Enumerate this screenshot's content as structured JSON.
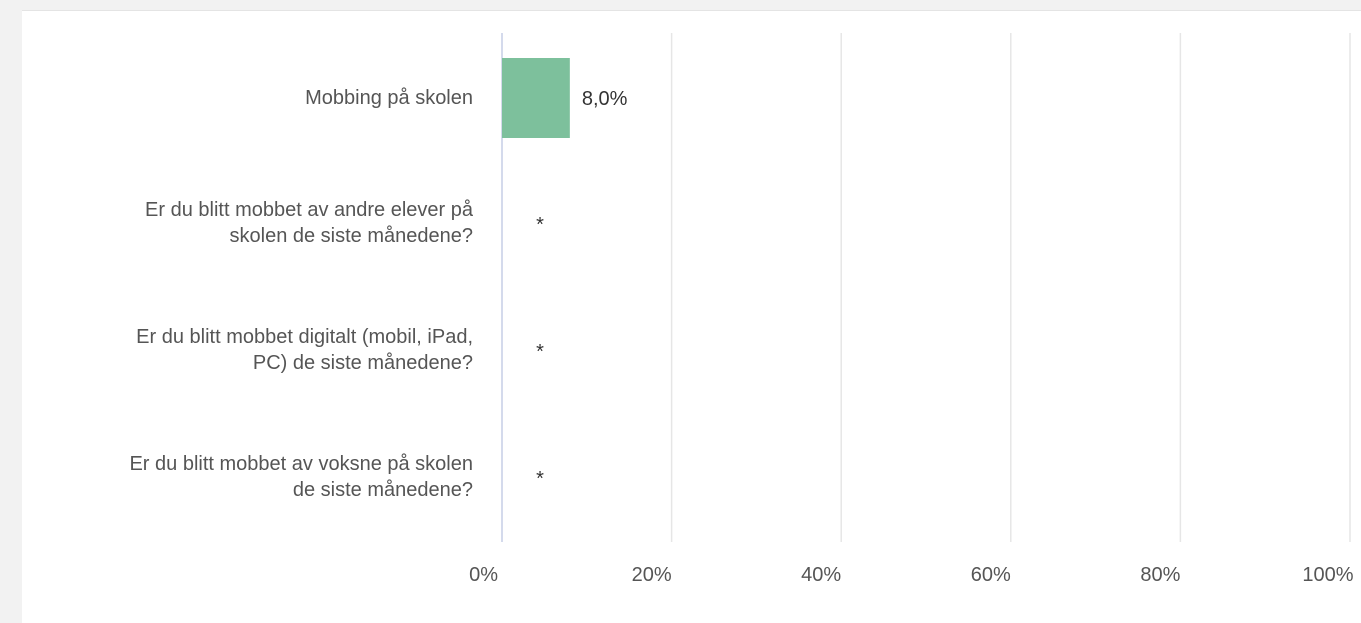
{
  "chart_data": {
    "type": "bar",
    "orientation": "horizontal",
    "categories": [
      "Mobbing på skolen",
      "Er du blitt mobbet av andre elever på skolen de siste månedene?",
      "Er du blitt mobbet digitalt (mobil, iPad, PC) de siste månedene?",
      "Er du blitt mobbet av voksne på skolen de siste månedene?"
    ],
    "category_lines": [
      [
        "Mobbing på skolen"
      ],
      [
        "Er du blitt mobbet av andre elever på",
        "skolen de siste månedene?"
      ],
      [
        "Er du blitt mobbet digitalt (mobil, iPad,",
        "PC) de siste månedene?"
      ],
      [
        "Er du blitt mobbet av voksne på skolen",
        "de siste månedene?"
      ]
    ],
    "values": [
      8.0,
      null,
      null,
      null
    ],
    "data_labels": [
      "8,0%",
      "*",
      "*",
      "*"
    ],
    "xlim": [
      0,
      100
    ],
    "xticks": [
      "0%",
      "20%",
      "40%",
      "60%",
      "80%",
      "100%"
    ],
    "grid": true,
    "legend": "none",
    "colors": {
      "bar": "#7dc09c",
      "grid": "#e6e6e6",
      "axis": "#c5cde6",
      "text": "#555555",
      "label": "#333333"
    }
  }
}
